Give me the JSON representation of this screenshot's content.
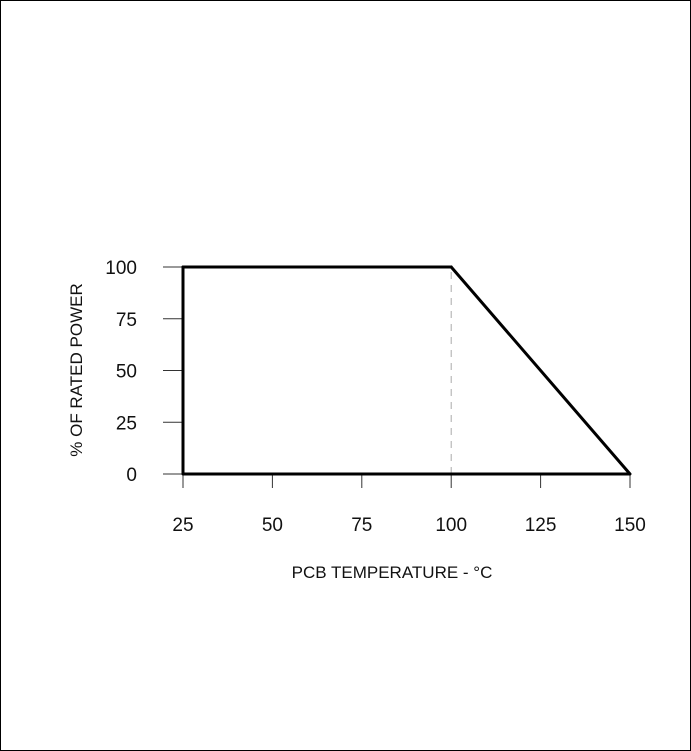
{
  "chart_data": {
    "type": "line",
    "title": "",
    "xlabel": "PCB TEMPERATURE - °C",
    "ylabel": "% OF RATED POWER",
    "x_ticks": [
      25,
      50,
      75,
      100,
      125,
      150
    ],
    "y_ticks": [
      0,
      25,
      50,
      75,
      100
    ],
    "xlim": [
      25,
      150
    ],
    "ylim": [
      0,
      100
    ],
    "grid": false,
    "legend": "none",
    "series": [
      {
        "points": [
          [
            25,
            0
          ],
          [
            25,
            100
          ],
          [
            100,
            100
          ],
          [
            150,
            0
          ]
        ]
      }
    ],
    "reference_lines": [
      {
        "x": 100,
        "y_from": 0,
        "y_to": 100,
        "style": "dashed"
      }
    ],
    "colors": {
      "curve": "#000000",
      "axis": "#333333",
      "reference": "#aaaaaa"
    }
  }
}
